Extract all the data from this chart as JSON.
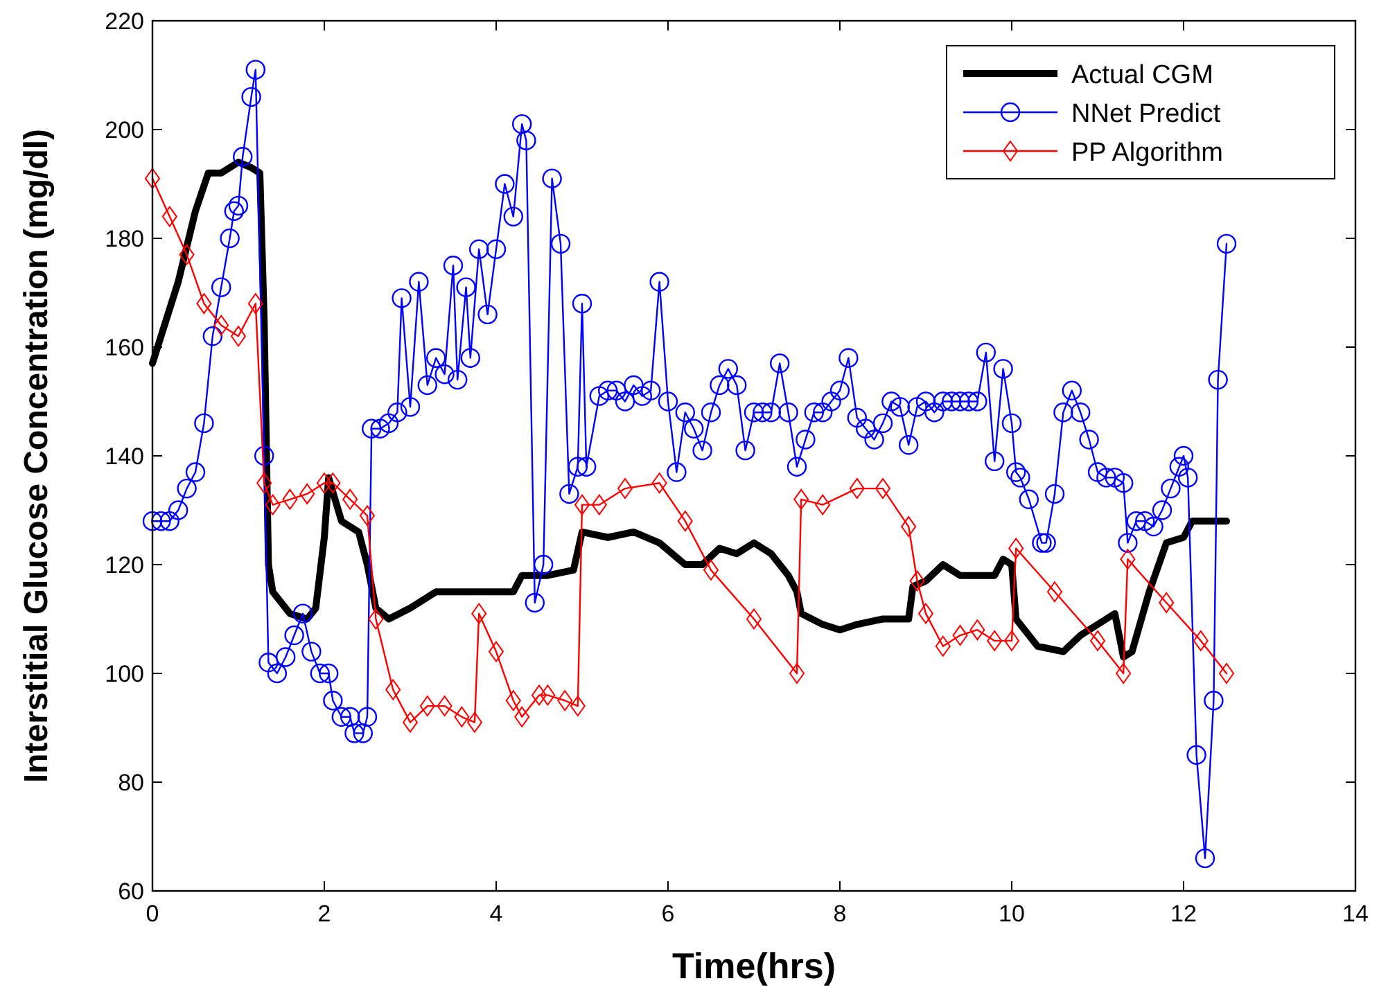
{
  "chart_data": {
    "type": "line",
    "xlabel": "Time(hrs)",
    "ylabel": "Interstitial Glucose Concentration (mg/dl)",
    "xlim": [
      0,
      14
    ],
    "xticks": [
      0,
      2,
      4,
      6,
      8,
      10,
      12,
      14
    ],
    "ylim": [
      60,
      220
    ],
    "yticks": [
      60,
      80,
      100,
      120,
      140,
      160,
      180,
      200,
      220
    ],
    "grid": false,
    "legend": "top right",
    "series": [
      {
        "name": "Actual CGM",
        "color": "#000000",
        "marker": "none",
        "x": [
          0,
          0.1,
          0.3,
          0.5,
          0.65,
          0.8,
          1.0,
          1.15,
          1.25,
          1.3,
          1.35,
          1.4,
          1.6,
          1.8,
          1.9,
          2.0,
          2.05,
          2.2,
          2.4,
          2.5,
          2.6,
          2.75,
          3.0,
          3.3,
          3.6,
          4.0,
          4.2,
          4.3,
          4.6,
          4.9,
          5.0,
          5.3,
          5.6,
          5.9,
          6.2,
          6.4,
          6.6,
          6.8,
          7.0,
          7.2,
          7.4,
          7.5,
          7.55,
          7.8,
          8.0,
          8.2,
          8.5,
          8.8,
          8.85,
          9.0,
          9.2,
          9.4,
          9.8,
          9.9,
          10.0,
          10.05,
          10.3,
          10.6,
          10.8,
          11.0,
          11.2,
          11.3,
          11.4,
          11.6,
          11.8,
          12.0,
          12.1,
          12.5
        ],
        "values": [
          157,
          162,
          172,
          185,
          192,
          192,
          194,
          193,
          192,
          165,
          120,
          115,
          111,
          110,
          112,
          125,
          136,
          128,
          126,
          120,
          112,
          110,
          112,
          115,
          115,
          115,
          115,
          118,
          118,
          119,
          126,
          125,
          126,
          124,
          120,
          120,
          123,
          122,
          124,
          122,
          118,
          115,
          111,
          109,
          108,
          109,
          110,
          110,
          116,
          117,
          120,
          118,
          118,
          121,
          120,
          110,
          105,
          104,
          107,
          109,
          111,
          103,
          104,
          115,
          124,
          125,
          128,
          128
        ]
      },
      {
        "name": "NNet Predict",
        "color": "#0000ff",
        "marker": "circle",
        "x": [
          0,
          0.1,
          0.2,
          0.3,
          0.4,
          0.5,
          0.6,
          0.7,
          0.8,
          0.9,
          0.95,
          1.0,
          1.05,
          1.15,
          1.2,
          1.3,
          1.35,
          1.45,
          1.55,
          1.65,
          1.75,
          1.85,
          1.95,
          2.05,
          2.1,
          2.2,
          2.3,
          2.35,
          2.45,
          2.5,
          2.55,
          2.65,
          2.75,
          2.85,
          2.9,
          3.0,
          3.1,
          3.2,
          3.3,
          3.4,
          3.5,
          3.55,
          3.65,
          3.7,
          3.8,
          3.9,
          4.0,
          4.1,
          4.2,
          4.3,
          4.35,
          4.45,
          4.55,
          4.65,
          4.75,
          4.85,
          4.95,
          5.0,
          5.05,
          5.2,
          5.3,
          5.4,
          5.5,
          5.6,
          5.7,
          5.8,
          5.9,
          6.0,
          6.1,
          6.2,
          6.3,
          6.4,
          6.5,
          6.6,
          6.7,
          6.8,
          6.9,
          7.0,
          7.1,
          7.2,
          7.3,
          7.4,
          7.5,
          7.6,
          7.7,
          7.8,
          7.9,
          8.0,
          8.1,
          8.2,
          8.3,
          8.4,
          8.5,
          8.6,
          8.7,
          8.8,
          8.9,
          9.0,
          9.1,
          9.2,
          9.3,
          9.4,
          9.5,
          9.6,
          9.7,
          9.8,
          9.9,
          10.0,
          10.05,
          10.1,
          10.2,
          10.35,
          10.4,
          10.5,
          10.6,
          10.7,
          10.8,
          10.9,
          11.0,
          11.1,
          11.2,
          11.3,
          11.35,
          11.45,
          11.55,
          11.65,
          11.75,
          11.85,
          11.95,
          12.0,
          12.05,
          12.15,
          12.25,
          12.35,
          12.4,
          12.5
        ],
        "values": [
          128,
          128,
          128,
          130,
          134,
          137,
          146,
          162,
          171,
          180,
          185,
          186,
          195,
          206,
          211,
          140,
          102,
          100,
          103,
          107,
          111,
          104,
          100,
          100,
          95,
          92,
          92,
          89,
          89,
          92,
          145,
          145,
          146,
          148,
          169,
          149,
          172,
          153,
          158,
          155,
          175,
          154,
          171,
          158,
          178,
          166,
          178,
          190,
          184,
          201,
          198,
          113,
          120,
          191,
          179,
          133,
          138,
          168,
          138,
          151,
          152,
          152,
          150,
          153,
          151,
          152,
          172,
          150,
          137,
          148,
          145,
          141,
          148,
          153,
          156,
          153,
          141,
          148,
          148,
          148,
          157,
          148,
          138,
          143,
          148,
          148,
          150,
          152,
          158,
          147,
          145,
          143,
          146,
          150,
          149,
          142,
          149,
          150,
          148,
          150,
          150,
          150,
          150,
          150,
          159,
          139,
          156,
          146,
          137,
          136,
          132,
          124,
          124,
          133,
          148,
          152,
          148,
          143,
          137,
          136,
          136,
          135,
          124,
          128,
          128,
          127,
          130,
          134,
          138,
          140,
          136,
          85,
          66,
          95,
          154,
          179
        ]
      },
      {
        "name": "PP Algorithm",
        "color": "#ff0000",
        "marker": "diamond",
        "x": [
          0,
          0.2,
          0.4,
          0.6,
          0.8,
          1.0,
          1.2,
          1.3,
          1.4,
          1.6,
          1.8,
          2.0,
          2.1,
          2.3,
          2.5,
          2.6,
          2.8,
          3.0,
          3.2,
          3.4,
          3.6,
          3.75,
          3.8,
          4.0,
          4.2,
          4.3,
          4.5,
          4.6,
          4.8,
          4.95,
          5.0,
          5.2,
          5.5,
          5.9,
          6.2,
          6.5,
          7.0,
          7.5,
          7.55,
          7.8,
          8.2,
          8.5,
          8.8,
          8.9,
          9.0,
          9.2,
          9.4,
          9.6,
          9.8,
          10.0,
          10.05,
          10.5,
          11.0,
          11.3,
          11.35,
          11.8,
          12.2,
          12.5
        ],
        "values": [
          191,
          184,
          177,
          168,
          164,
          162,
          168,
          135,
          131,
          132,
          133,
          135,
          135,
          132,
          129,
          110,
          97,
          91,
          94,
          94,
          92,
          91,
          111,
          104,
          95,
          92,
          96,
          96,
          95,
          94,
          131,
          131,
          134,
          135,
          128,
          119,
          110,
          100,
          132,
          131,
          134,
          134,
          127,
          117,
          111,
          105,
          107,
          108,
          106,
          106,
          123,
          115,
          106,
          100,
          121,
          113,
          106,
          100
        ]
      }
    ]
  }
}
